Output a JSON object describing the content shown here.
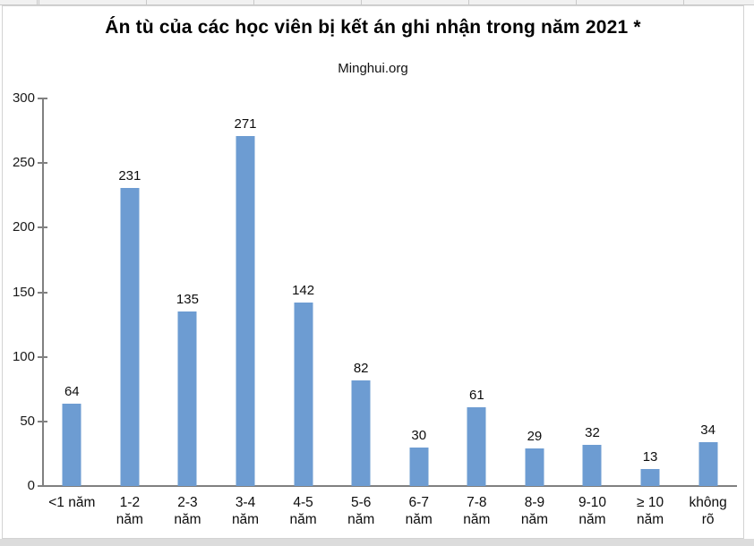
{
  "chart": {
    "title": "Án tù của các học viên bị kết án ghi nhận trong năm 2021 *",
    "subtitle": "Minghui.org"
  },
  "chart_data": {
    "type": "bar",
    "title": "Án tù của các học viên bị kết án ghi nhận trong năm 2021 *",
    "subtitle": "Minghui.org",
    "categories": [
      "<1 năm",
      "1-2 năm",
      "2-3 năm",
      "3-4 năm",
      "4-5 năm",
      "5-6 năm",
      "6-7 năm",
      "7-8 năm",
      "8-9 năm",
      "9-10 năm",
      "≥ 10 năm",
      "không rõ"
    ],
    "categories_display": [
      "<1 năm",
      "1-2\nnăm",
      "2-3\nnăm",
      "3-4\nnăm",
      "4-5\nnăm",
      "5-6\nnăm",
      "6-7\nnăm",
      "7-8\nnăm",
      "8-9\nnăm",
      "9-10\nnăm",
      "≥ 10\nnăm",
      "không\nrõ"
    ],
    "values": [
      64,
      231,
      135,
      271,
      142,
      82,
      30,
      61,
      29,
      32,
      13,
      34
    ],
    "data_labels": true,
    "xlabel": "",
    "ylabel": "",
    "ylim": [
      0,
      300
    ],
    "yticks": [
      0,
      50,
      100,
      150,
      200,
      250,
      300
    ],
    "grid": false,
    "legend": false,
    "bar_color": "#6D9CD2",
    "axis_color": "#808080",
    "label_color": "#0d0d0d"
  }
}
